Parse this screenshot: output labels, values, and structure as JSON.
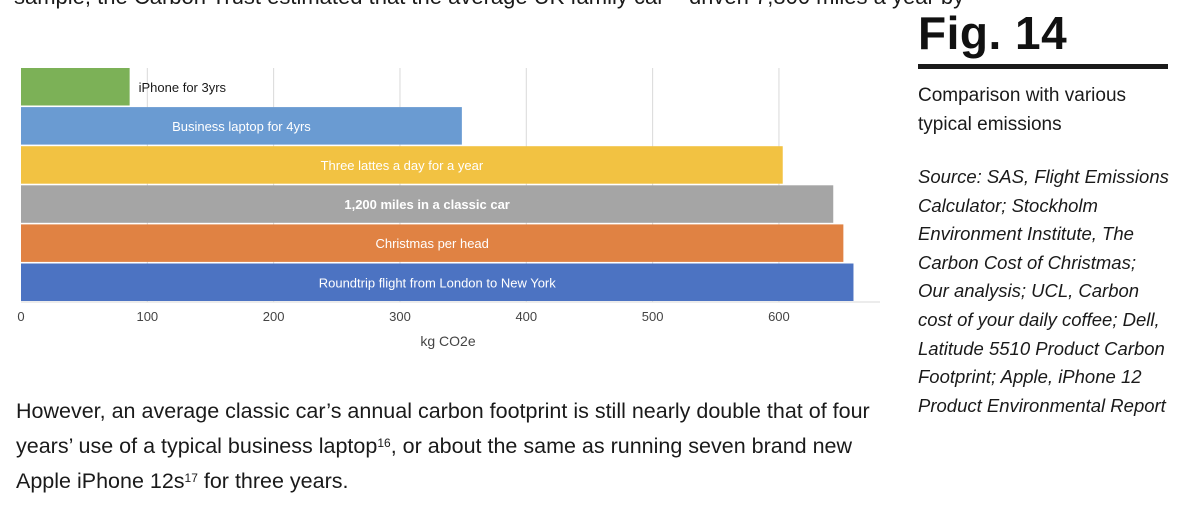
{
  "top_fragment": "sample, the Carbon Trust estimated that the average UK family car – driven 7,800 miles a year by",
  "sidebar": {
    "figure_label": "Fig. 14",
    "subtitle": "Comparison with various typical emissions",
    "source": "Source: SAS, Flight Emissions Calculator; Stockholm Environment Institute, The Carbon Cost of Christmas; Our analysis; UCL, Carbon cost of your daily coffee; Dell, Latitude 5510 Product Carbon Footprint; Apple, iPhone 12 Product Environmental Report"
  },
  "body": {
    "text_1": "However, an average classic car’s annual carbon footprint is still nearly double that of four years’ use of a typical business laptop",
    "sup_1": "16",
    "text_2": ", or about the same as running seven brand new Apple iPhone 12s",
    "sup_2": "17",
    "text_3": " for three years."
  },
  "chart_data": {
    "type": "bar",
    "orientation": "horizontal",
    "categories": [
      "iPhone for 3yrs",
      "Business laptop for 4yrs",
      "Three lattes a day for a year",
      "1,200 miles in a classic car",
      "Christmas per head",
      "Roundtrip flight from London to New York"
    ],
    "values": [
      86,
      349,
      603,
      643,
      651,
      659
    ],
    "colors": [
      "#7cb157",
      "#6a9bd2",
      "#f2c242",
      "#a5a5a5",
      "#e08243",
      "#4c73c2"
    ],
    "label_colors": [
      "#1a1a1a",
      "#ffffff",
      "#ffffff",
      "#ffffff",
      "#ffffff",
      "#ffffff"
    ],
    "bold_categories": [
      "1,200 miles in a classic car"
    ],
    "xlabel": "kg CO2e",
    "ylabel": "",
    "xlim": [
      0,
      680
    ],
    "xticks": [
      "0",
      "100",
      "200",
      "300",
      "400",
      "500",
      "600"
    ],
    "tick_values": [
      0,
      100,
      200,
      300,
      400,
      500,
      600
    ],
    "grid": true,
    "legend": "none"
  }
}
